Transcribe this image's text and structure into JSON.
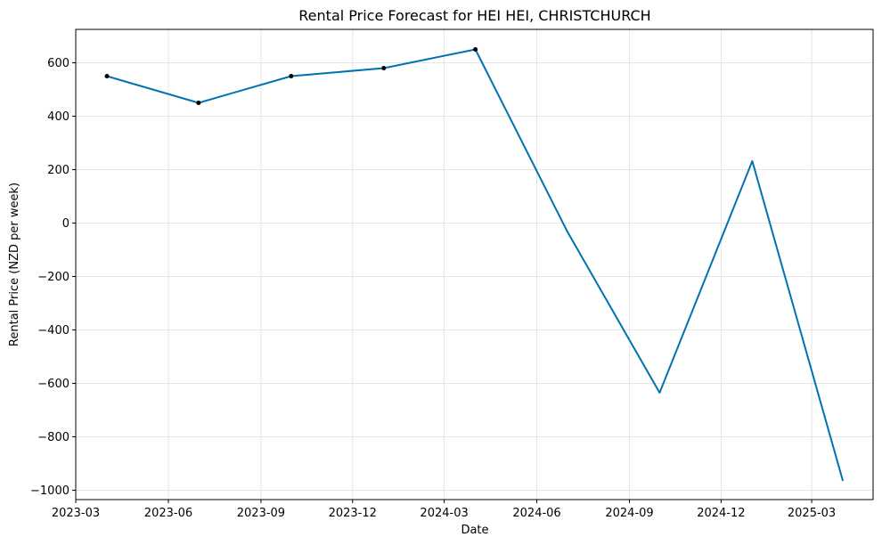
{
  "chart_data": {
    "type": "line",
    "title": "Rental Price Forecast for HEI HEI, CHRISTCHURCH",
    "xlabel": "Date",
    "ylabel": "Rental Price (NZD per week)",
    "x_type": "date",
    "xlim": [
      "2023-03-01",
      "2025-05-01"
    ],
    "ylim": [
      -1035,
      725
    ],
    "grid": true,
    "x_ticks": [
      "2023-03-01",
      "2023-06-01",
      "2023-09-01",
      "2023-12-01",
      "2024-03-01",
      "2024-06-01",
      "2024-09-01",
      "2024-12-01",
      "2025-03-01"
    ],
    "x_tick_labels": [
      "2023-03",
      "2023-06",
      "2023-09",
      "2023-12",
      "2024-03",
      "2024-06",
      "2024-09",
      "2024-12",
      "2025-03"
    ],
    "y_ticks": [
      600,
      400,
      200,
      0,
      -200,
      -400,
      -600,
      -800,
      -1000
    ],
    "y_tick_labels": [
      "600",
      "400",
      "200",
      "0",
      "−200",
      "−400",
      "−600",
      "−800",
      "−1000"
    ],
    "series": [
      {
        "role": "forecast",
        "color": "#0072B2",
        "points": [
          {
            "x": "2023-04-01",
            "y": 550
          },
          {
            "x": "2023-07-01",
            "y": 450
          },
          {
            "x": "2023-10-01",
            "y": 550
          },
          {
            "x": "2024-01-01",
            "y": 580
          },
          {
            "x": "2024-04-01",
            "y": 650
          },
          {
            "x": "2024-07-01",
            "y": -30
          },
          {
            "x": "2024-10-01",
            "y": -635
          },
          {
            "x": "2025-01-01",
            "y": 232
          },
          {
            "x": "2025-04-01",
            "y": -965
          }
        ]
      },
      {
        "role": "observed",
        "color": "#000000",
        "marker": "dot",
        "points": [
          {
            "x": "2023-04-01",
            "y": 550
          },
          {
            "x": "2023-07-01",
            "y": 450
          },
          {
            "x": "2023-10-01",
            "y": 550
          },
          {
            "x": "2024-01-01",
            "y": 580
          },
          {
            "x": "2024-04-01",
            "y": 650
          }
        ]
      }
    ]
  }
}
